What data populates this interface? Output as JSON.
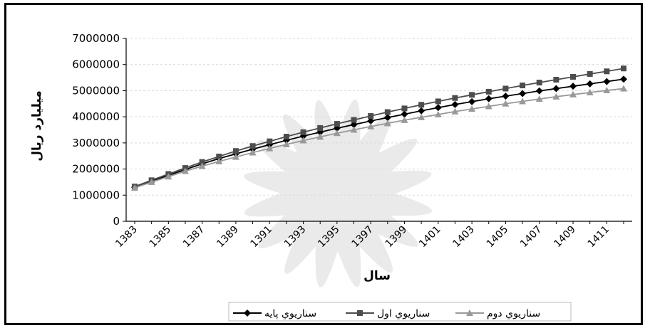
{
  "chart_data": {
    "type": "line",
    "title": "",
    "xlabel": "سال",
    "ylabel": "میلیارد ریال",
    "x": [
      1383,
      1384,
      1385,
      1386,
      1387,
      1388,
      1389,
      1390,
      1391,
      1392,
      1393,
      1394,
      1395,
      1396,
      1397,
      1398,
      1399,
      1400,
      1401,
      1402,
      1403,
      1404,
      1405,
      1406,
      1407,
      1408,
      1409,
      1410,
      1411,
      1412
    ],
    "x_tick_labels": [
      "1383",
      "1385",
      "1387",
      "1389",
      "1391",
      "1393",
      "1395",
      "1397",
      "1399",
      "1401",
      "1403",
      "1405",
      "1407",
      "1409",
      "1411"
    ],
    "y_tick_labels": [
      "0",
      "1000000",
      "2000000",
      "3000000",
      "4000000",
      "5000000",
      "6000000",
      "7000000"
    ],
    "ylim": [
      0,
      7000000
    ],
    "grid": true,
    "legend_position": "bottom-right",
    "series": [
      {
        "name": "سناريوي پايه",
        "color": "#000000",
        "marker": "diamond",
        "values": [
          1300000,
          1530000,
          1760000,
          1980000,
          2200000,
          2400000,
          2580000,
          2760000,
          2930000,
          3100000,
          3260000,
          3410000,
          3560000,
          3700000,
          3840000,
          3970000,
          4100000,
          4230000,
          4350000,
          4470000,
          4580000,
          4690000,
          4790000,
          4890000,
          4990000,
          5080000,
          5170000,
          5260000,
          5350000,
          5440000
        ]
      },
      {
        "name": "سناريوي اول",
        "color": "#4d4d4d",
        "marker": "square",
        "values": [
          1330000,
          1570000,
          1810000,
          2040000,
          2270000,
          2480000,
          2690000,
          2880000,
          3060000,
          3240000,
          3410000,
          3570000,
          3730000,
          3880000,
          4030000,
          4180000,
          4320000,
          4460000,
          4590000,
          4720000,
          4840000,
          4960000,
          5080000,
          5200000,
          5310000,
          5420000,
          5530000,
          5640000,
          5740000,
          5850000
        ]
      },
      {
        "name": "سناريوي دوم",
        "color": "#999999",
        "marker": "triangle",
        "values": [
          1280000,
          1500000,
          1710000,
          1920000,
          2110000,
          2290000,
          2460000,
          2630000,
          2790000,
          2940000,
          3090000,
          3230000,
          3370000,
          3500000,
          3630000,
          3750000,
          3870000,
          3980000,
          4090000,
          4200000,
          4300000,
          4400000,
          4500000,
          4590000,
          4680000,
          4770000,
          4850000,
          4930000,
          5010000,
          5080000
        ]
      }
    ]
  }
}
